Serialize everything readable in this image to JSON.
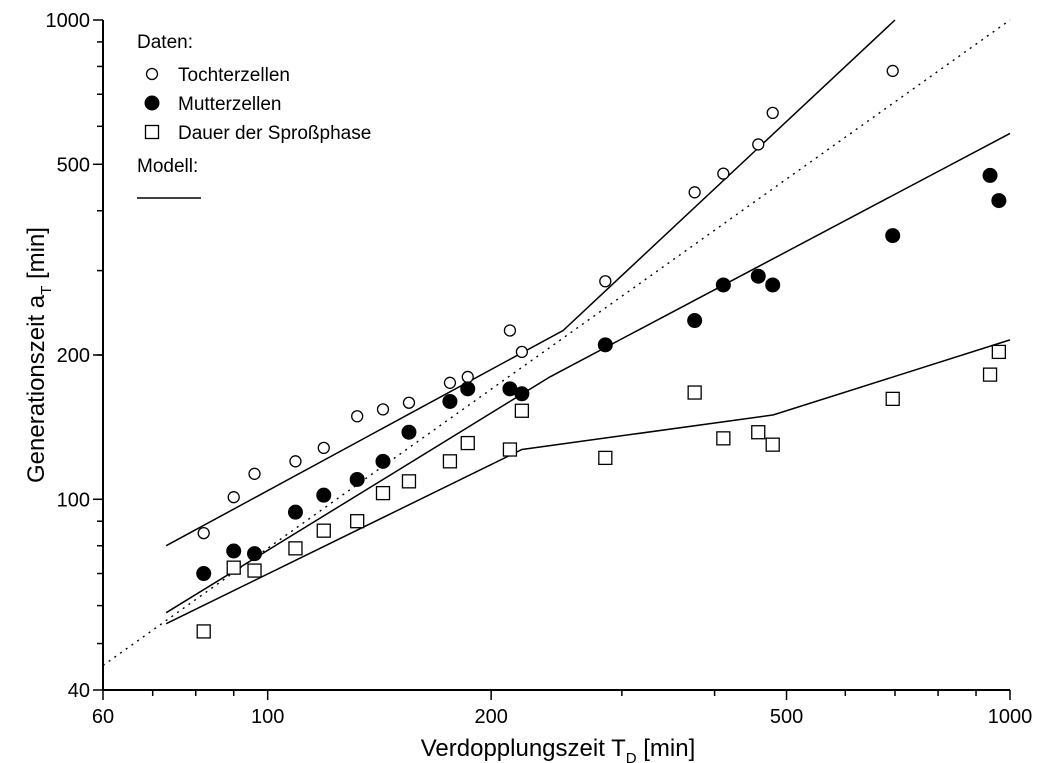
{
  "chart_data": {
    "type": "scatter",
    "xscale": "log",
    "yscale": "log",
    "xlim": [
      60,
      1000
    ],
    "ylim": [
      40,
      1000
    ],
    "xlabel": "Verdopplungszeit T",
    "xlabel_sub": "D",
    "xlabel_unit": " [min]",
    "ylabel": "Generationszeit  a",
    "ylabel_sub": "T",
    "ylabel_unit": " [min]",
    "x_ticks": [
      60,
      100,
      200,
      500,
      1000
    ],
    "y_ticks": [
      40,
      100,
      200,
      500,
      1000
    ],
    "legend": {
      "placement": "top-left",
      "data_title": "Daten:",
      "model_title": "Modell:"
    },
    "series": [
      {
        "name": "Tochterzellen",
        "marker": "open-circle",
        "points": [
          [
            82,
            85
          ],
          [
            90,
            101
          ],
          [
            96,
            113
          ],
          [
            109,
            120
          ],
          [
            119,
            128
          ],
          [
            132,
            149
          ],
          [
            143,
            154
          ],
          [
            155,
            159
          ],
          [
            176,
            175
          ],
          [
            186,
            180
          ],
          [
            212,
            225
          ],
          [
            220,
            203
          ],
          [
            285,
            285
          ],
          [
            376,
            437
          ],
          [
            411,
            478
          ],
          [
            458,
            550
          ],
          [
            479,
            640
          ],
          [
            695,
            783
          ]
        ]
      },
      {
        "name": "Mutterzellen",
        "marker": "filled-circle",
        "points": [
          [
            82,
            70
          ],
          [
            90,
            78
          ],
          [
            96,
            77
          ],
          [
            109,
            94
          ],
          [
            119,
            102
          ],
          [
            132,
            110
          ],
          [
            143,
            120
          ],
          [
            155,
            138
          ],
          [
            176,
            160
          ],
          [
            186,
            170
          ],
          [
            212,
            170
          ],
          [
            220,
            166
          ],
          [
            285,
            210
          ],
          [
            376,
            236
          ],
          [
            411,
            280
          ],
          [
            458,
            292
          ],
          [
            479,
            280
          ],
          [
            695,
            355
          ],
          [
            940,
            474
          ],
          [
            966,
            420
          ]
        ]
      },
      {
        "name": "Dauer der Sproßphase",
        "marker": "open-square",
        "points": [
          [
            82,
            53
          ],
          [
            90,
            72
          ],
          [
            96,
            71
          ],
          [
            109,
            79
          ],
          [
            119,
            86
          ],
          [
            132,
            90
          ],
          [
            143,
            103
          ],
          [
            155,
            109
          ],
          [
            176,
            120
          ],
          [
            186,
            131
          ],
          [
            212,
            127
          ],
          [
            220,
            153
          ],
          [
            285,
            122
          ],
          [
            376,
            167
          ],
          [
            411,
            134
          ],
          [
            458,
            138
          ],
          [
            479,
            130
          ],
          [
            695,
            162
          ],
          [
            940,
            182
          ],
          [
            966,
            203
          ]
        ]
      }
    ],
    "model_curves": [
      {
        "style": "solid",
        "points": [
          [
            73,
            80
          ],
          [
            250,
            225
          ],
          [
            700,
            1000
          ]
        ]
      },
      {
        "style": "solid",
        "points": [
          [
            73,
            58
          ],
          [
            240,
            180
          ],
          [
            1000,
            580
          ]
        ]
      },
      {
        "style": "solid",
        "points": [
          [
            73,
            55
          ],
          [
            220,
            127
          ],
          [
            480,
            150
          ],
          [
            1000,
            215
          ]
        ]
      },
      {
        "style": "dotted",
        "points": [
          [
            60,
            45
          ],
          [
            1000,
            1000
          ]
        ]
      }
    ]
  }
}
